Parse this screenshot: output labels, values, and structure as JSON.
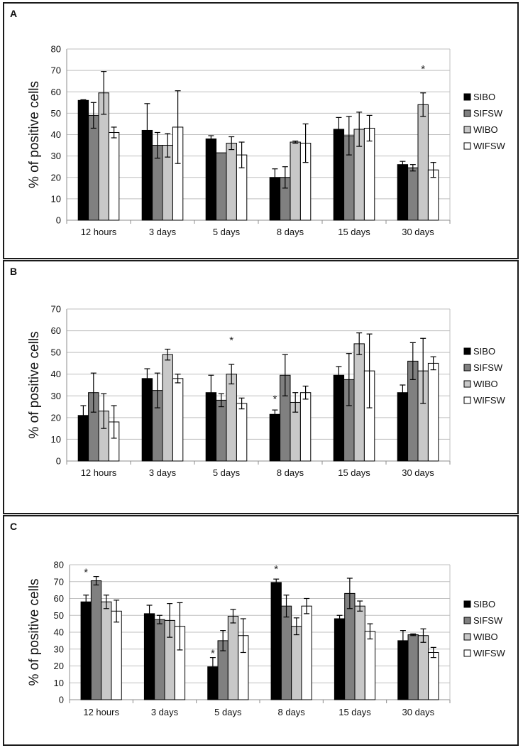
{
  "colors": {
    "SIBO": "#000000",
    "SIFSW": "#808080",
    "WIBO": "#c8c8c8",
    "WIFSW": "#ffffff",
    "grid": "#bfbfbf",
    "axis": "#8c8c8c"
  },
  "chart_data": [
    {
      "panel_label": "A",
      "type": "bar",
      "ylabel": "% of positive cells",
      "ylim": [
        0,
        80
      ],
      "ytick_step": 10,
      "grid": true,
      "legend_position": "right",
      "categories": [
        "12 hours",
        "3 days",
        "5 days",
        "8 days",
        "15 days",
        "30 days"
      ],
      "series": [
        {
          "name": "SIBO",
          "values": [
            56,
            42,
            38,
            20,
            42.5,
            26
          ],
          "errors": [
            0.3,
            12.5,
            1.5,
            4,
            5.5,
            1.5
          ]
        },
        {
          "name": "SIFSW",
          "values": [
            49,
            35,
            31.5,
            20,
            39.5,
            24.5
          ],
          "errors": [
            6,
            6,
            0,
            5,
            9,
            1.5
          ]
        },
        {
          "name": "WIBO",
          "values": [
            59.5,
            35,
            36,
            36.5,
            42.5,
            54
          ],
          "errors": [
            10,
            5.5,
            3,
            0.5,
            8,
            5.5
          ]
        },
        {
          "name": "WIFSW",
          "values": [
            41,
            43.5,
            30.5,
            36,
            43,
            23.5
          ],
          "errors": [
            2.5,
            17,
            6,
            9,
            6,
            3.5
          ]
        }
      ],
      "annotations": [
        {
          "text": "*",
          "category": "30 days",
          "series": "WIBO",
          "y": 71
        }
      ]
    },
    {
      "panel_label": "B",
      "type": "bar",
      "ylabel": "% of positive cells",
      "ylim": [
        0,
        70
      ],
      "ytick_step": 10,
      "grid": true,
      "legend_position": "right",
      "categories": [
        "12 hours",
        "3 days",
        "5 days",
        "8 days",
        "15 days",
        "30 days"
      ],
      "series": [
        {
          "name": "SIBO",
          "values": [
            21,
            38,
            31.5,
            21.5,
            39.5,
            31.5
          ],
          "errors": [
            4.5,
            4.5,
            8,
            2,
            4,
            3.5
          ]
        },
        {
          "name": "SIFSW",
          "values": [
            31.5,
            32.5,
            28,
            39.5,
            37.5,
            46
          ],
          "errors": [
            9,
            8,
            3,
            9.5,
            12,
            8.5
          ]
        },
        {
          "name": "WIBO",
          "values": [
            23,
            49,
            40,
            27,
            54,
            41.5
          ],
          "errors": [
            8,
            2.5,
            4.5,
            4.5,
            5,
            15
          ]
        },
        {
          "name": "WIFSW",
          "values": [
            18,
            38,
            26.5,
            31.5,
            41.5,
            45
          ],
          "errors": [
            7.5,
            2,
            2.5,
            3,
            17,
            3
          ]
        }
      ],
      "annotations": [
        {
          "text": "*",
          "category": "5 days",
          "series": "WIBO",
          "y": 56
        },
        {
          "text": "*",
          "category": "8 days",
          "series": "SIBO",
          "y": 29
        }
      ]
    },
    {
      "panel_label": "C",
      "type": "bar",
      "ylabel": "% of positive cells",
      "ylim": [
        0,
        80
      ],
      "ytick_step": 10,
      "grid": true,
      "legend_position": "right",
      "categories": [
        "12 hours",
        "3 days",
        "5 days",
        "8 days",
        "15 days",
        "30 days"
      ],
      "series": [
        {
          "name": "SIBO",
          "values": [
            58,
            51,
            19.5,
            69.5,
            48,
            35
          ],
          "errors": [
            4,
            5,
            5.5,
            2,
            2,
            6
          ]
        },
        {
          "name": "SIFSW",
          "values": [
            70.5,
            47.5,
            35,
            55.5,
            63,
            38.5
          ],
          "errors": [
            2.5,
            2.5,
            6,
            6.5,
            9,
            0.5
          ]
        },
        {
          "name": "WIBO",
          "values": [
            58,
            47,
            49.5,
            43.5,
            55.5,
            38
          ],
          "errors": [
            4,
            10,
            4,
            5,
            3,
            4
          ]
        },
        {
          "name": "WIFSW",
          "values": [
            52.5,
            43.5,
            38,
            55.5,
            40.5,
            28
          ],
          "errors": [
            6.5,
            14,
            10,
            4.5,
            4.5,
            3
          ]
        }
      ],
      "annotations": [
        {
          "text": "*",
          "category": "12 hours",
          "series": "SIBO",
          "y": 76
        },
        {
          "text": "*",
          "category": "5 days",
          "series": "SIBO",
          "y": 28
        },
        {
          "text": "*",
          "category": "8 days",
          "series": "SIBO",
          "y": 78
        }
      ]
    }
  ]
}
